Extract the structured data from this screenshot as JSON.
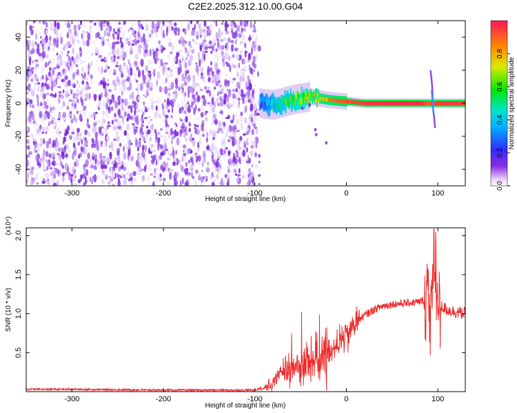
{
  "title": "C2E2.2025.312.10.00.G04",
  "chart_data": [
    {
      "type": "heatmap",
      "xlabel": "Height of straight line (km)",
      "ylabel": "Frequency (Hz)",
      "xlim": [
        -350,
        130
      ],
      "ylim": [
        -50,
        50
      ],
      "xticks": [
        -300,
        -200,
        -100,
        0,
        100
      ],
      "xtick_labels": [
        "-300",
        "-200",
        "-100",
        "0",
        "100"
      ],
      "yticks": [
        -40,
        -20,
        0,
        20,
        40
      ],
      "ytick_labels": [
        "-40",
        "-20",
        "0",
        "20",
        "40"
      ],
      "colorbar": {
        "label": "Normalized spectral amplitude",
        "range": [
          0,
          1
        ],
        "ticks": [
          0.0,
          0.2,
          0.4,
          0.6,
          0.8
        ],
        "tick_labels": [
          "0.0",
          "0.2",
          "0.4",
          "0.6",
          "0.8"
        ]
      },
      "features": [
        {
          "name": "noise-region",
          "x_range": [
            -350,
            -95
          ],
          "freq_range": [
            -50,
            50
          ],
          "amplitude_range": [
            0.05,
            0.2
          ]
        },
        {
          "name": "signal-trace",
          "x": [
            -95,
            -80,
            -60,
            -40,
            -20,
            0,
            20,
            50,
            80,
            90,
            100,
            130
          ],
          "freq": [
            0,
            -1,
            2,
            4,
            2,
            1,
            0,
            0,
            0,
            0,
            0,
            0
          ],
          "amplitude": [
            0.4,
            0.55,
            0.7,
            0.8,
            0.88,
            0.92,
            0.95,
            0.97,
            0.97,
            0.9,
            0.95,
            0.95
          ]
        },
        {
          "name": "spike",
          "x": 93,
          "freq_range": [
            -15,
            20
          ]
        }
      ]
    },
    {
      "type": "line",
      "xlabel": "Height of straight line (km)",
      "ylabel": "SNR (10 * v/v)",
      "multiplier_label": "(x10⁴)",
      "xlim": [
        -350,
        130
      ],
      "ylim": [
        0,
        2.1
      ],
      "xticks": [
        -300,
        -200,
        -100,
        0,
        100
      ],
      "xtick_labels": [
        "-300",
        "-200",
        "-100",
        "0",
        "100"
      ],
      "yticks": [
        0.5,
        1.0,
        1.5,
        2.0
      ],
      "ytick_labels": [
        "0.5",
        "1.0",
        "1.5",
        "2.0"
      ],
      "series": [
        {
          "name": "SNR",
          "color": "#ee2a2a",
          "x": [
            -350,
            -300,
            -250,
            -200,
            -150,
            -100,
            -90,
            -80,
            -70,
            -60,
            -50,
            -40,
            -30,
            -20,
            -10,
            0,
            10,
            20,
            30,
            40,
            50,
            60,
            70,
            80,
            85,
            90,
            95,
            100,
            105,
            110,
            120,
            130
          ],
          "y": [
            0.03,
            0.03,
            0.025,
            0.02,
            0.02,
            0.02,
            0.05,
            0.12,
            0.22,
            0.3,
            0.35,
            0.38,
            0.42,
            0.5,
            0.6,
            0.72,
            0.88,
            0.98,
            1.05,
            1.1,
            1.12,
            1.13,
            1.14,
            1.15,
            1.18,
            1.2,
            1.25,
            1.15,
            1.08,
            1.05,
            1.02,
            1.0
          ]
        }
      ]
    }
  ]
}
